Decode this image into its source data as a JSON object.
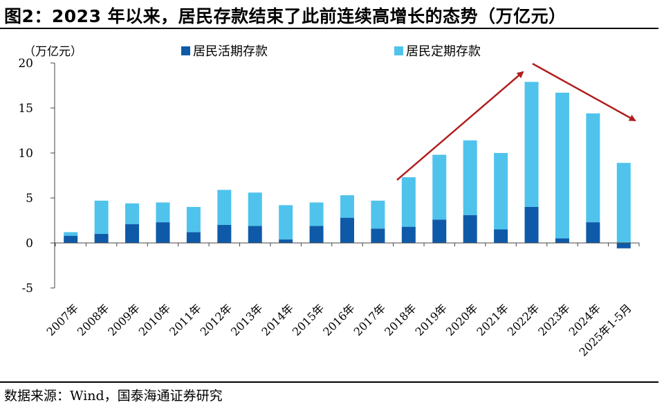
{
  "title": "图2：2023 年以来，居民存款结束了此前连续高增长的态势（万亿元）",
  "source": "数据来源：Wind，国泰海通证券研究",
  "chart_data": {
    "type": "bar",
    "stacked": true,
    "unit_label": "（万亿元）",
    "categories": [
      "2007年",
      "2008年",
      "2009年",
      "2010年",
      "2011年",
      "2012年",
      "2013年",
      "2014年",
      "2015年",
      "2016年",
      "2017年",
      "2018年",
      "2019年",
      "2020年",
      "2021年",
      "2022年",
      "2023年",
      "2024年",
      "2025年1-5月"
    ],
    "series": [
      {
        "name": "居民活期存款",
        "color": "#0f5aa8",
        "values": [
          0.8,
          1.0,
          2.1,
          2.3,
          1.2,
          2.0,
          1.9,
          0.4,
          1.9,
          2.8,
          1.6,
          1.8,
          2.6,
          3.1,
          1.5,
          4.0,
          0.5,
          2.3,
          -0.6
        ]
      },
      {
        "name": "居民定期存款",
        "color": "#4fc3ec",
        "values": [
          0.4,
          3.7,
          2.3,
          2.2,
          2.8,
          3.9,
          3.7,
          3.8,
          2.6,
          2.5,
          3.1,
          5.5,
          7.2,
          8.3,
          8.5,
          13.9,
          16.2,
          12.1,
          8.9
        ]
      }
    ],
    "ylim": [
      -5,
      20
    ],
    "yticks": [
      -5,
      0,
      5,
      10,
      15,
      20
    ],
    "ytick_labels": [
      "-5",
      "0",
      "5",
      "10",
      "15",
      "20"
    ],
    "legend_position": "top",
    "annotations": [
      {
        "type": "trend-arrow",
        "direction": "up",
        "from_category": "2018年",
        "to_category": "2022年",
        "color": "#b01e1e"
      },
      {
        "type": "trend-arrow",
        "direction": "down",
        "from_category": "2022年",
        "to_category": "2025年1-5月",
        "color": "#b01e1e"
      }
    ],
    "grid": false
  }
}
